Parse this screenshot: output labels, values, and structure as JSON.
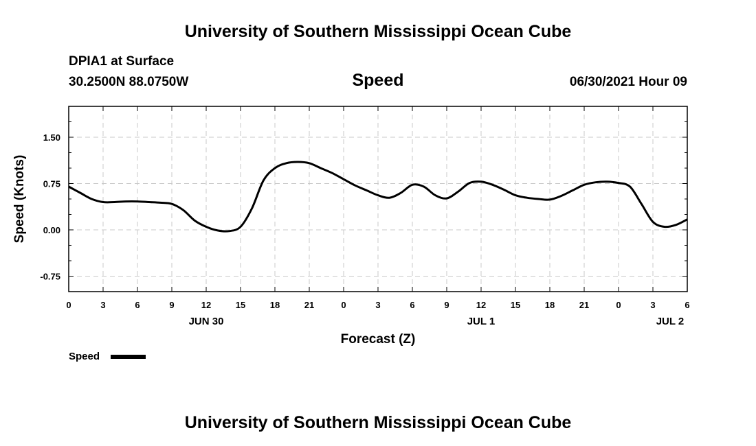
{
  "header": {
    "title": "University of Southern Mississippi Ocean Cube",
    "station": "DPIA1 at Surface",
    "location": "30.2500N  88.0750W",
    "variable": "Speed",
    "datetime": "06/30/2021 Hour 09"
  },
  "footer": {
    "title": "University of Southern Mississippi Ocean Cube"
  },
  "legend": {
    "label": "Speed",
    "color": "#000000"
  },
  "chart_data": {
    "type": "line",
    "xlabel": "Forecast (Z)",
    "ylabel": "Speed (Knots)",
    "xlim": [
      0,
      54
    ],
    "ylim": [
      -1.0,
      2.0
    ],
    "grid": true,
    "legend_position": "bottom-left",
    "x_ticks": [
      0,
      3,
      6,
      9,
      12,
      15,
      18,
      21,
      24,
      27,
      30,
      33,
      36,
      39,
      42,
      45,
      48,
      51,
      54
    ],
    "x_tick_labels": [
      "0",
      "3",
      "6",
      "9",
      "12",
      "15",
      "18",
      "21",
      "0",
      "3",
      "6",
      "9",
      "12",
      "15",
      "18",
      "21",
      "0",
      "3",
      "6"
    ],
    "y_ticks": [
      -0.75,
      0.0,
      0.75,
      1.5
    ],
    "y_tick_labels": [
      "-0.75",
      "0.00",
      "0.75",
      "1.50"
    ],
    "date_labels": [
      {
        "x": 12,
        "text": "JUN 30"
      },
      {
        "x": 36,
        "text": "JUL 1"
      },
      {
        "x": 52.5,
        "text": "JUL 2"
      }
    ],
    "series": [
      {
        "name": "Speed",
        "color": "#000000",
        "x": [
          0,
          1,
          2,
          3,
          4,
          5,
          6,
          7,
          8,
          9,
          10,
          11,
          12,
          13,
          14,
          15,
          16,
          17,
          18,
          19,
          20,
          21,
          22,
          23,
          24,
          25,
          26,
          27,
          28,
          29,
          30,
          31,
          32,
          33,
          34,
          35,
          36,
          37,
          38,
          39,
          40,
          41,
          42,
          43,
          44,
          45,
          46,
          47,
          48,
          49,
          50,
          51,
          52,
          53,
          54
        ],
        "y": [
          0.7,
          0.6,
          0.5,
          0.45,
          0.45,
          0.46,
          0.46,
          0.45,
          0.44,
          0.42,
          0.32,
          0.15,
          0.05,
          -0.01,
          -0.02,
          0.05,
          0.35,
          0.8,
          1.0,
          1.08,
          1.1,
          1.08,
          1.0,
          0.92,
          0.82,
          0.72,
          0.64,
          0.56,
          0.52,
          0.6,
          0.73,
          0.7,
          0.56,
          0.51,
          0.62,
          0.76,
          0.78,
          0.73,
          0.65,
          0.56,
          0.52,
          0.5,
          0.49,
          0.55,
          0.64,
          0.73,
          0.77,
          0.78,
          0.76,
          0.7,
          0.42,
          0.13,
          0.05,
          0.08,
          0.17
        ]
      }
    ]
  }
}
